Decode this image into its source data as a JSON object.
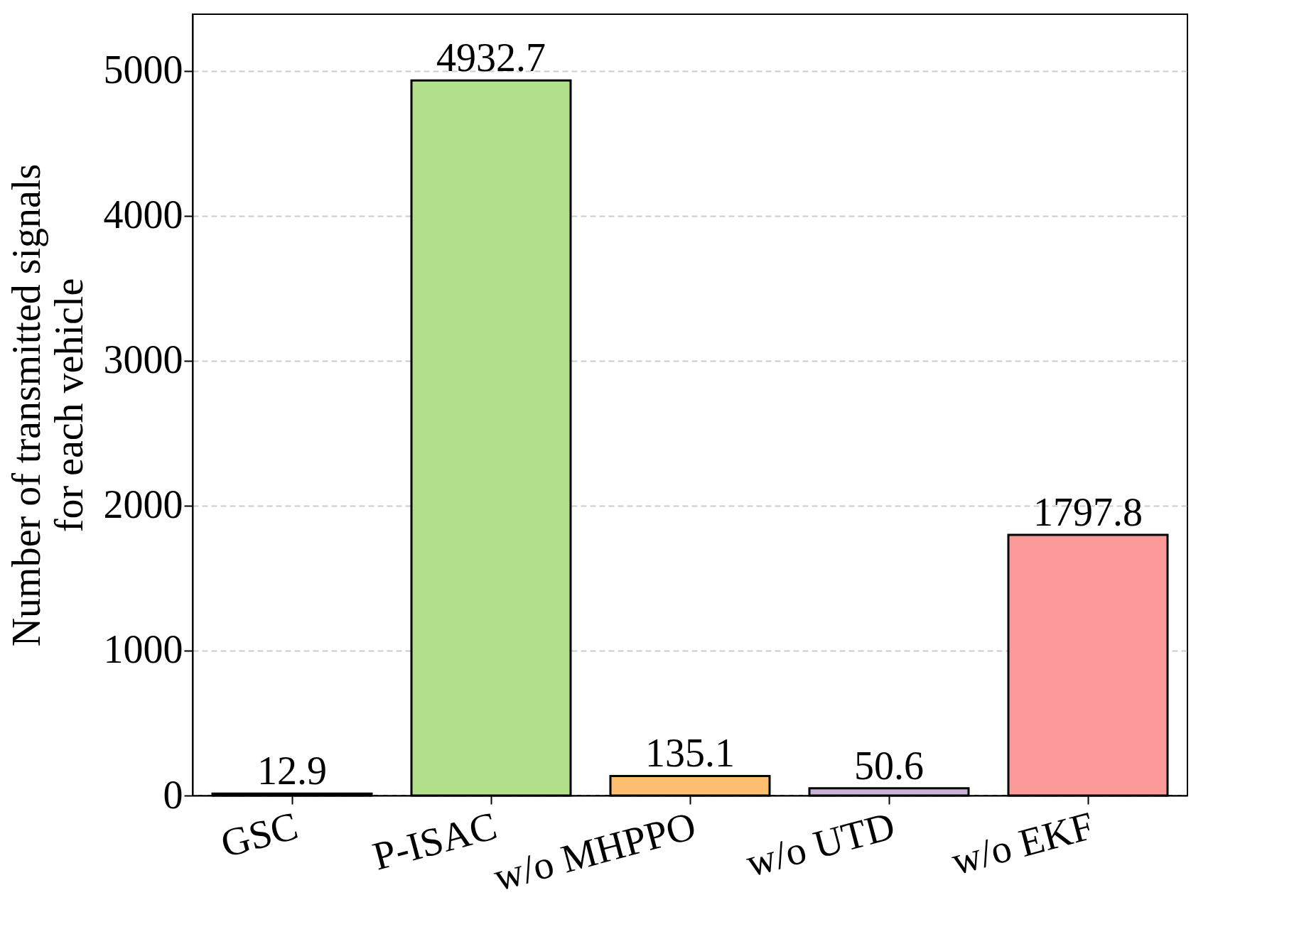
{
  "chart_data": {
    "type": "bar",
    "ylabel": "Number of transmitted signals\nfor each vehicle",
    "categories": [
      "GSC",
      "P-ISAC",
      "w/o MHPPO",
      "w/o UTD",
      "w/o EKF"
    ],
    "values": [
      12.9,
      4932.7,
      135.1,
      50.6,
      1797.8
    ],
    "colors": [
      "#a6cee3",
      "#b2df8a",
      "#fdbf6f",
      "#cab2d6",
      "#fb9a99"
    ],
    "ylim": [
      0,
      5390
    ],
    "yticks": [
      0,
      1000,
      2000,
      3000,
      4000,
      5000
    ],
    "grid": "y",
    "data_labels": true
  }
}
